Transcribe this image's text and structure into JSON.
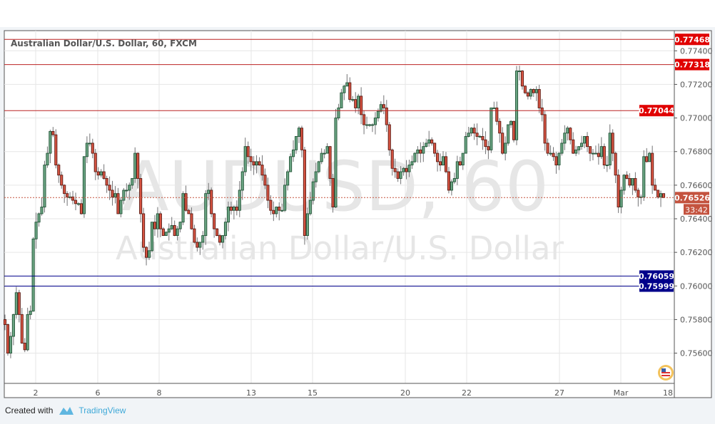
{
  "chart_data": {
    "type": "candlestick",
    "title": "Australian Dollar/U.S. Dollar, 60, FXCM",
    "watermark_symbol": "AUDUSD, 60",
    "watermark_name": "Australian Dollar/U.S. Dollar",
    "ylim": [
      0.7542,
      0.7752
    ],
    "y_ticks": [
      "0.75600",
      "0.75800",
      "0.76000",
      "0.76200",
      "0.76400",
      "0.76600",
      "0.76800",
      "0.77000",
      "0.77200",
      "0.77400"
    ],
    "x_ticks": [
      "2",
      "6",
      "8",
      "13",
      "15",
      "20",
      "22",
      "27",
      "Mar",
      "18"
    ],
    "grid": true,
    "colors": {
      "up": "#6ba583",
      "up_border": "#225437",
      "down": "#d75442",
      "down_border": "#5b1a13",
      "wick": "#737375",
      "resistance": "#e00000",
      "support": "#00008b",
      "last": "#c4533f"
    },
    "horizontal_levels": [
      {
        "price": "0.77468",
        "kind": "resistance"
      },
      {
        "price": "0.77318",
        "kind": "resistance"
      },
      {
        "price": "0.77044",
        "kind": "resistance"
      },
      {
        "price": "0.76059",
        "kind": "support"
      },
      {
        "price": "0.75999",
        "kind": "support"
      }
    ],
    "last_price": "0.76526",
    "countdown": "33:42",
    "closes": [
      0.7577,
      0.756,
      0.757,
      0.7583,
      0.7596,
      0.7583,
      0.7566,
      0.7562,
      0.7583,
      0.7585,
      0.7628,
      0.7638,
      0.7643,
      0.7647,
      0.7672,
      0.7679,
      0.7692,
      0.769,
      0.7672,
      0.7666,
      0.766,
      0.7655,
      0.7653,
      0.7653,
      0.7651,
      0.7649,
      0.7649,
      0.7643,
      0.7677,
      0.7685,
      0.7685,
      0.7679,
      0.7668,
      0.7666,
      0.7668,
      0.7664,
      0.766,
      0.7657,
      0.7653,
      0.7655,
      0.7643,
      0.7651,
      0.7657,
      0.7657,
      0.766,
      0.7664,
      0.7679,
      0.7664,
      0.7643,
      0.7623,
      0.7617,
      0.7621,
      0.7638,
      0.7634,
      0.7643,
      0.7634,
      0.763,
      0.7632,
      0.7634,
      0.7636,
      0.763,
      0.7634,
      0.7638,
      0.7655,
      0.7645,
      0.7643,
      0.7634,
      0.7626,
      0.7623,
      0.7626,
      0.763,
      0.7655,
      0.7657,
      0.7643,
      0.7634,
      0.763,
      0.7626,
      0.763,
      0.7638,
      0.7647,
      0.7645,
      0.7647,
      0.7645,
      0.7657,
      0.7668,
      0.7683,
      0.7677,
      0.7674,
      0.7672,
      0.7674,
      0.7672,
      0.7666,
      0.766,
      0.7651,
      0.7645,
      0.7643,
      0.7647,
      0.7645,
      0.7645,
      0.766,
      0.7668,
      0.7677,
      0.7681,
      0.7689,
      0.7694,
      0.7681,
      0.763,
      0.7643,
      0.7651,
      0.7662,
      0.7668,
      0.7674,
      0.7679,
      0.7679,
      0.7683,
      0.7664,
      0.7647,
      0.77,
      0.7706,
      0.7715,
      0.7719,
      0.7721,
      0.7711,
      0.7711,
      0.7706,
      0.7713,
      0.7702,
      0.7696,
      0.7696,
      0.7696,
      0.7696,
      0.77,
      0.7704,
      0.7708,
      0.7706,
      0.7696,
      0.7681,
      0.767,
      0.7668,
      0.7664,
      0.7668,
      0.767,
      0.7668,
      0.7672,
      0.7674,
      0.7679,
      0.7681,
      0.7679,
      0.7683,
      0.7685,
      0.7687,
      0.7685,
      0.7679,
      0.7674,
      0.7672,
      0.7677,
      0.7668,
      0.7657,
      0.7662,
      0.7664,
      0.7674,
      0.7672,
      0.7679,
      0.7689,
      0.7691,
      0.7694,
      0.7691,
      0.7689,
      0.7689,
      0.7687,
      0.7683,
      0.7681,
      0.7706,
      0.7706,
      0.7698,
      0.7691,
      0.7679,
      0.7685,
      0.7696,
      0.7698,
      0.7687,
      0.7728,
      0.7728,
      0.7719,
      0.7715,
      0.7713,
      0.7717,
      0.7715,
      0.7717,
      0.7706,
      0.7702,
      0.7685,
      0.7679,
      0.7679,
      0.7677,
      0.7672,
      0.7679,
      0.7685,
      0.7691,
      0.7694,
      0.7687,
      0.7679,
      0.7681,
      0.7683,
      0.7685,
      0.7689,
      0.7683,
      0.7679,
      0.7679,
      0.7679,
      0.7677,
      0.7683,
      0.7672,
      0.7672,
      0.7691,
      0.7679,
      0.7666,
      0.7647,
      0.7657,
      0.7666,
      0.7664,
      0.766,
      0.7664,
      0.7657,
      0.7653,
      0.7653,
      0.7677,
      0.7674,
      0.7679,
      0.766,
      0.7657,
      0.7653,
      0.7655,
      0.76526
    ]
  },
  "footer": {
    "created_with": "Created with",
    "brand": "TradingView"
  }
}
